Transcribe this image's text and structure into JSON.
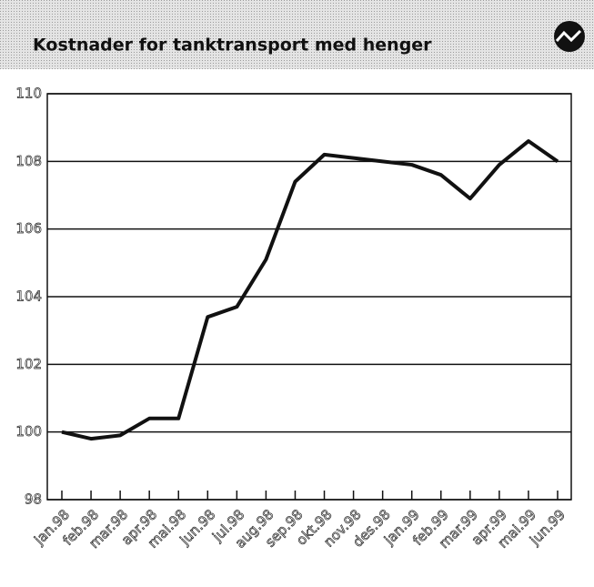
{
  "chart_data": {
    "type": "line",
    "title": "Kostnader for tanktransport med henger",
    "categories": [
      "jan.98",
      "feb.98",
      "mar.98",
      "apr.98",
      "mai.98",
      "jun.98",
      "jul.98",
      "aug.98",
      "sep.98",
      "okt.98",
      "nov.98",
      "des.98",
      "jan.99",
      "feb.99",
      "mar.99",
      "apr.99",
      "mai.99",
      "jun.99"
    ],
    "series": [
      {
        "name": "Kostnader",
        "color": "#111111",
        "values": [
          100.0,
          99.8,
          99.9,
          100.4,
          100.4,
          103.4,
          103.7,
          105.1,
          107.4,
          108.2,
          108.1,
          108.0,
          107.9,
          107.6,
          106.9,
          107.9,
          108.6,
          108.0
        ]
      }
    ],
    "ylim": [
      98,
      110
    ],
    "yticks": [
      98,
      100,
      102,
      104,
      106,
      108,
      110
    ],
    "grid": true
  }
}
